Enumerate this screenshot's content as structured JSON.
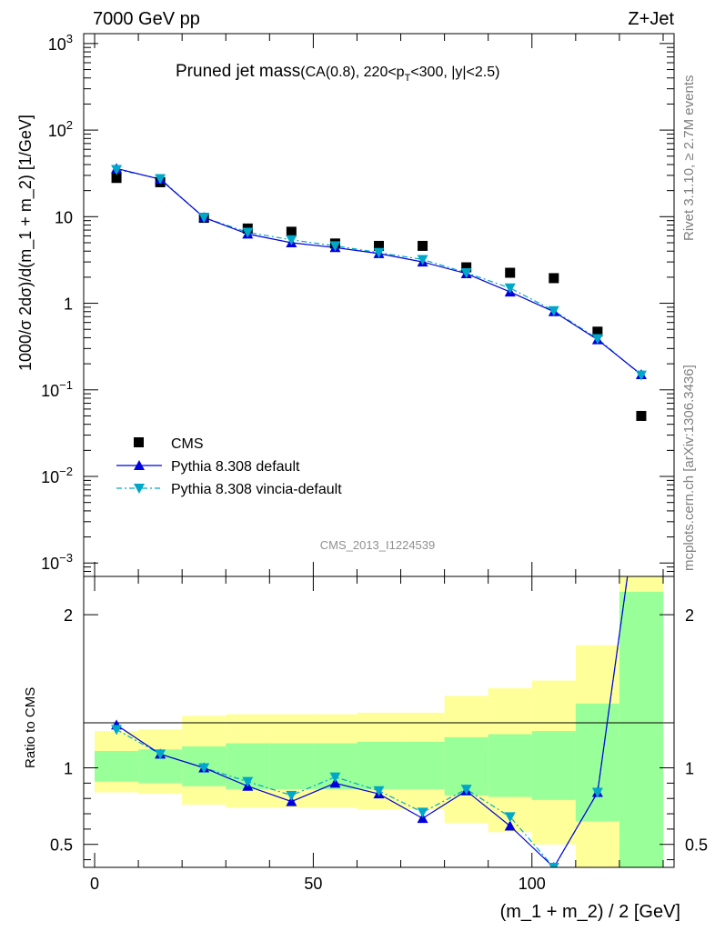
{
  "header": {
    "left": "7000 GeV pp",
    "right": "Z+Jet"
  },
  "side_texts": {
    "rivet": "Rivet 3.1.10, ≥ 2.7M events",
    "mcplots": "mcplots.cern.ch [arXiv:1306.3436]"
  },
  "analysis_id": "CMS_2013_I1224539",
  "colors": {
    "cms": "#000000",
    "default": "#0000dd",
    "vincia": "#00a8c8",
    "band_inner": "#99ff99",
    "band_outer": "#ffff99"
  },
  "chart_data": [
    {
      "type": "scatter",
      "panel": "main",
      "title_main": "Pruned jet mass",
      "title_sub": "(CA(0.8), 220<p",
      "title_sub_sub": "T",
      "title_sub_end": "<300, |y|<2.5)",
      "ylabel": "1000/σ 2dσ)/d(m_1 + m_2) [1/GeV]",
      "xlim": [
        -2.5,
        132.5
      ],
      "ylim": [
        0.0007,
        1300
      ],
      "yscale": "log",
      "ytick_labels": [
        {
          "v": 0.001,
          "base": "10",
          "exp": "−3"
        },
        {
          "v": 0.01,
          "base": "10",
          "exp": "−2"
        },
        {
          "v": 0.1,
          "base": "10",
          "exp": "−1"
        },
        {
          "v": 1,
          "base": "1",
          "exp": ""
        },
        {
          "v": 10,
          "base": "10",
          "exp": ""
        },
        {
          "v": 100,
          "base": "10",
          "exp": "2"
        },
        {
          "v": 1000,
          "base": "10",
          "exp": "3"
        }
      ],
      "x": [
        5,
        15,
        25,
        35,
        45,
        55,
        65,
        75,
        85,
        95,
        105,
        115,
        125
      ],
      "series": [
        {
          "name": "CMS",
          "values": [
            28,
            25,
            9.7,
            7.3,
            6.7,
            4.9,
            4.6,
            4.6,
            2.6,
            2.25,
            1.95,
            0.47,
            0.05
          ]
        },
        {
          "name": "Pythia 8.308 default",
          "values": [
            36,
            27,
            9.8,
            6.3,
            5.0,
            4.4,
            3.75,
            3.0,
            2.2,
            1.35,
            0.8,
            0.38,
            0.15
          ]
        },
        {
          "name": "Pythia 8.308 vincia-default",
          "values": [
            35,
            27.5,
            9.8,
            6.6,
            5.4,
            4.6,
            3.85,
            3.2,
            2.25,
            1.5,
            0.82,
            0.39,
            0.148
          ]
        }
      ],
      "legend": [
        "CMS",
        "Pythia 8.308 default",
        "Pythia 8.308 vincia-default"
      ],
      "legend_position": "lower-left"
    },
    {
      "type": "line",
      "panel": "ratio",
      "ylabel": "Ratio to CMS",
      "xlabel": "(m_1 + m_2) / 2 [GeV]",
      "xlim": [
        -2.5,
        132.5
      ],
      "ylim": [
        0.35,
        2.25
      ],
      "xticks": [
        0,
        50,
        100
      ],
      "yticks": [
        0.5,
        1,
        2
      ],
      "x": [
        5,
        15,
        25,
        35,
        45,
        55,
        65,
        75,
        85,
        95,
        105,
        115,
        125
      ],
      "bands": {
        "edges": [
          0,
          10,
          20,
          30,
          40,
          50,
          60,
          70,
          80,
          90,
          100,
          110,
          120,
          130
        ],
        "inner_low": [
          0.91,
          0.9,
          0.88,
          0.86,
          0.86,
          0.86,
          0.86,
          0.86,
          0.82,
          0.81,
          0.79,
          0.65,
          0.35
        ],
        "inner_high": [
          1.11,
          1.12,
          1.14,
          1.16,
          1.16,
          1.16,
          1.17,
          1.17,
          1.2,
          1.22,
          1.24,
          1.42,
          2.15
        ],
        "outer_low": [
          0.84,
          0.83,
          0.76,
          0.74,
          0.74,
          0.74,
          0.73,
          0.73,
          0.64,
          0.58,
          0.5,
          0.35,
          0.35
        ],
        "outer_high": [
          1.24,
          1.25,
          1.34,
          1.35,
          1.35,
          1.35,
          1.36,
          1.36,
          1.47,
          1.52,
          1.57,
          1.8,
          2.25
        ]
      },
      "series": [
        {
          "name": "Pythia 8.308 default",
          "values": [
            1.28,
            1.09,
            1.0,
            0.88,
            0.78,
            0.9,
            0.83,
            0.67,
            0.85,
            0.62,
            0.35,
            0.84,
            2.9
          ]
        },
        {
          "name": "Pythia 8.308 vincia-default",
          "values": [
            1.25,
            1.09,
            1.0,
            0.91,
            0.82,
            0.94,
            0.85,
            0.71,
            0.86,
            0.68,
            0.35,
            0.84,
            2.9
          ]
        }
      ]
    }
  ]
}
